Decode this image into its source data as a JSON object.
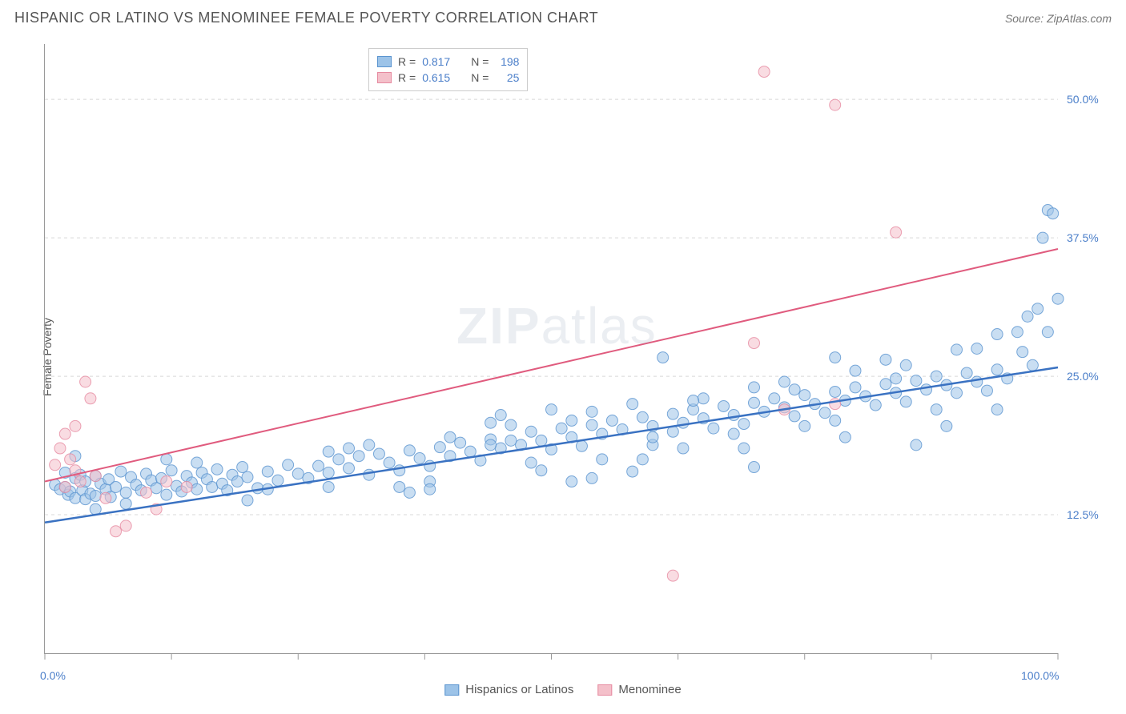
{
  "title": "HISPANIC OR LATINO VS MENOMINEE FEMALE POVERTY CORRELATION CHART",
  "source_label": "Source:",
  "source_name": "ZipAtlas.com",
  "ylabel": "Female Poverty",
  "watermark_bold": "ZIP",
  "watermark_light": "atlas",
  "chart": {
    "type": "scatter",
    "xlim": [
      0,
      100
    ],
    "ylim": [
      0,
      55
    ],
    "background_color": "#ffffff",
    "grid_color": "#d8d8d8",
    "axis_color": "#999999",
    "tick_color": "#999999",
    "y_gridlines": [
      12.5,
      25.0,
      37.5,
      50.0
    ],
    "y_tick_labels": [
      "12.5%",
      "25.0%",
      "37.5%",
      "50.0%"
    ],
    "x_ticks": [
      0,
      12.5,
      25,
      37.5,
      50,
      62.5,
      75,
      87.5,
      100
    ],
    "x_tick_labels_shown": {
      "0": "0.0%",
      "100": "100.0%"
    },
    "label_color": "#4a7ec9",
    "label_fontsize": 14,
    "marker_radius": 7,
    "marker_opacity": 0.55,
    "series": [
      {
        "name": "Hispanics or Latinos",
        "fill_color": "#9cc3e8",
        "stroke_color": "#5a94cf",
        "line_color": "#3a72c2",
        "line_width": 2.5,
        "R": "0.817",
        "N": "198",
        "trend": {
          "x1": 0,
          "y1": 11.8,
          "x2": 100,
          "y2": 25.8
        },
        "points": [
          [
            1,
            15.2
          ],
          [
            1.5,
            14.8
          ],
          [
            2,
            16.3
          ],
          [
            2,
            15.0
          ],
          [
            2.3,
            14.3
          ],
          [
            2.5,
            14.6
          ],
          [
            3,
            15.8
          ],
          [
            3,
            14.0
          ],
          [
            3.5,
            16.1
          ],
          [
            3.7,
            14.7
          ],
          [
            4,
            15.5
          ],
          [
            4,
            13.9
          ],
          [
            4.5,
            14.4
          ],
          [
            5,
            16.0
          ],
          [
            5,
            14.2
          ],
          [
            5.5,
            15.3
          ],
          [
            6,
            14.8
          ],
          [
            6.3,
            15.7
          ],
          [
            6.5,
            14.1
          ],
          [
            7,
            15.0
          ],
          [
            7.5,
            16.4
          ],
          [
            8,
            14.5
          ],
          [
            8.5,
            15.9
          ],
          [
            9,
            15.2
          ],
          [
            9.5,
            14.7
          ],
          [
            10,
            16.2
          ],
          [
            10.5,
            15.6
          ],
          [
            11,
            14.9
          ],
          [
            11.5,
            15.8
          ],
          [
            12,
            14.3
          ],
          [
            12.5,
            16.5
          ],
          [
            13,
            15.1
          ],
          [
            13.5,
            14.6
          ],
          [
            14,
            16.0
          ],
          [
            14.5,
            15.4
          ],
          [
            15,
            14.8
          ],
          [
            15.5,
            16.3
          ],
          [
            16,
            15.7
          ],
          [
            16.5,
            15.0
          ],
          [
            17,
            16.6
          ],
          [
            17.5,
            15.3
          ],
          [
            18,
            14.7
          ],
          [
            18.5,
            16.1
          ],
          [
            19,
            15.5
          ],
          [
            19.5,
            16.8
          ],
          [
            20,
            15.9
          ],
          [
            21,
            14.9
          ],
          [
            22,
            16.4
          ],
          [
            23,
            15.6
          ],
          [
            24,
            17.0
          ],
          [
            25,
            16.2
          ],
          [
            26,
            15.8
          ],
          [
            27,
            16.9
          ],
          [
            28,
            16.3
          ],
          [
            29,
            17.5
          ],
          [
            30,
            16.7
          ],
          [
            31,
            17.8
          ],
          [
            32,
            16.1
          ],
          [
            33,
            18.0
          ],
          [
            34,
            17.2
          ],
          [
            35,
            16.5
          ],
          [
            36,
            18.3
          ],
          [
            37,
            17.6
          ],
          [
            38,
            16.9
          ],
          [
            39,
            18.6
          ],
          [
            40,
            17.8
          ],
          [
            41,
            19.0
          ],
          [
            42,
            18.2
          ],
          [
            43,
            17.4
          ],
          [
            44,
            19.3
          ],
          [
            45,
            18.5
          ],
          [
            46,
            20.6
          ],
          [
            47,
            18.8
          ],
          [
            48,
            20.0
          ],
          [
            49,
            19.2
          ],
          [
            50,
            18.4
          ],
          [
            51,
            20.3
          ],
          [
            52,
            19.5
          ],
          [
            53,
            18.7
          ],
          [
            54,
            20.6
          ],
          [
            55,
            19.8
          ],
          [
            56,
            21.0
          ],
          [
            57,
            20.2
          ],
          [
            58,
            16.4
          ],
          [
            59,
            21.3
          ],
          [
            60,
            20.5
          ],
          [
            61,
            26.7
          ],
          [
            62,
            21.6
          ],
          [
            63,
            20.8
          ],
          [
            64,
            22.0
          ],
          [
            65,
            21.2
          ],
          [
            66,
            20.3
          ],
          [
            67,
            22.3
          ],
          [
            68,
            21.5
          ],
          [
            69,
            20.7
          ],
          [
            70,
            22.6
          ],
          [
            71,
            21.8
          ],
          [
            72,
            23.0
          ],
          [
            73,
            22.2
          ],
          [
            74,
            21.4
          ],
          [
            75,
            23.3
          ],
          [
            76,
            22.5
          ],
          [
            77,
            21.7
          ],
          [
            78,
            23.6
          ],
          [
            79,
            22.8
          ],
          [
            80,
            24.0
          ],
          [
            81,
            23.2
          ],
          [
            82,
            22.4
          ],
          [
            83,
            24.3
          ],
          [
            84,
            23.5
          ],
          [
            85,
            22.7
          ],
          [
            86,
            24.6
          ],
          [
            87,
            23.8
          ],
          [
            88,
            25.0
          ],
          [
            89,
            24.2
          ],
          [
            90,
            27.4
          ],
          [
            91,
            25.3
          ],
          [
            92,
            24.5
          ],
          [
            93,
            23.7
          ],
          [
            94,
            25.6
          ],
          [
            95,
            24.8
          ],
          [
            96,
            29.0
          ],
          [
            96.5,
            27.2
          ],
          [
            97,
            30.4
          ],
          [
            97.5,
            26.0
          ],
          [
            98,
            31.1
          ],
          [
            98.5,
            37.5
          ],
          [
            99,
            40.0
          ],
          [
            99.5,
            39.7
          ],
          [
            100,
            32.0
          ],
          [
            45,
            21.5
          ],
          [
            50,
            22.0
          ],
          [
            55,
            17.5
          ],
          [
            60,
            18.8
          ],
          [
            65,
            23.0
          ],
          [
            70,
            24.0
          ],
          [
            75,
            20.5
          ],
          [
            80,
            25.5
          ],
          [
            85,
            26.0
          ],
          [
            90,
            23.5
          ],
          [
            35,
            15.0
          ],
          [
            40,
            19.5
          ],
          [
            48,
            17.2
          ],
          [
            52,
            21.0
          ],
          [
            58,
            22.5
          ],
          [
            63,
            18.5
          ],
          [
            68,
            19.8
          ],
          [
            73,
            24.5
          ],
          [
            78,
            21.0
          ],
          [
            83,
            26.5
          ],
          [
            88,
            22.0
          ],
          [
            92,
            27.5
          ],
          [
            28,
            15.0
          ],
          [
            32,
            18.8
          ],
          [
            38,
            15.5
          ],
          [
            44,
            20.8
          ],
          [
            49,
            16.5
          ],
          [
            54,
            21.8
          ],
          [
            59,
            17.5
          ],
          [
            64,
            22.8
          ],
          [
            69,
            18.5
          ],
          [
            74,
            23.8
          ],
          [
            79,
            19.5
          ],
          [
            84,
            24.8
          ],
          [
            89,
            20.5
          ],
          [
            94,
            28.8
          ],
          [
            3,
            17.8
          ],
          [
            8,
            13.5
          ],
          [
            15,
            17.2
          ],
          [
            22,
            14.8
          ],
          [
            30,
            18.5
          ],
          [
            38,
            14.8
          ],
          [
            46,
            19.2
          ],
          [
            54,
            15.8
          ],
          [
            62,
            20.0
          ],
          [
            70,
            16.8
          ],
          [
            78,
            26.7
          ],
          [
            86,
            18.8
          ],
          [
            94,
            22.0
          ],
          [
            99,
            29.0
          ],
          [
            5,
            13.0
          ],
          [
            12,
            17.5
          ],
          [
            20,
            13.8
          ],
          [
            28,
            18.2
          ],
          [
            36,
            14.5
          ],
          [
            44,
            18.8
          ],
          [
            52,
            15.5
          ],
          [
            60,
            19.5
          ]
        ]
      },
      {
        "name": "Menominee",
        "fill_color": "#f4c0ca",
        "stroke_color": "#e68aa0",
        "line_color": "#e05b7e",
        "line_width": 2,
        "R": "0.615",
        "N": "25",
        "trend": {
          "x1": 0,
          "y1": 15.5,
          "x2": 100,
          "y2": 36.5
        },
        "points": [
          [
            1,
            17.0
          ],
          [
            1.5,
            18.5
          ],
          [
            2,
            19.8
          ],
          [
            2.5,
            17.5
          ],
          [
            3,
            20.5
          ],
          [
            3.5,
            15.5
          ],
          [
            4,
            24.5
          ],
          [
            4.5,
            23.0
          ],
          [
            5,
            16.0
          ],
          [
            6,
            14.0
          ],
          [
            7,
            11.0
          ],
          [
            8,
            11.5
          ],
          [
            10,
            14.5
          ],
          [
            11,
            13.0
          ],
          [
            12,
            15.5
          ],
          [
            14,
            15.0
          ],
          [
            62,
            7.0
          ],
          [
            70,
            28.0
          ],
          [
            73,
            22.0
          ],
          [
            78,
            22.5
          ],
          [
            84,
            38.0
          ],
          [
            71,
            52.5
          ],
          [
            78,
            49.5
          ],
          [
            3,
            16.5
          ],
          [
            2,
            15.0
          ]
        ]
      }
    ]
  },
  "legend_top": {
    "R_label": "R =",
    "N_label": "N ="
  },
  "legend_bottom": [
    {
      "label": "Hispanics or Latinos",
      "fill": "#9cc3e8",
      "stroke": "#5a94cf"
    },
    {
      "label": "Menominee",
      "fill": "#f4c0ca",
      "stroke": "#e68aa0"
    }
  ]
}
